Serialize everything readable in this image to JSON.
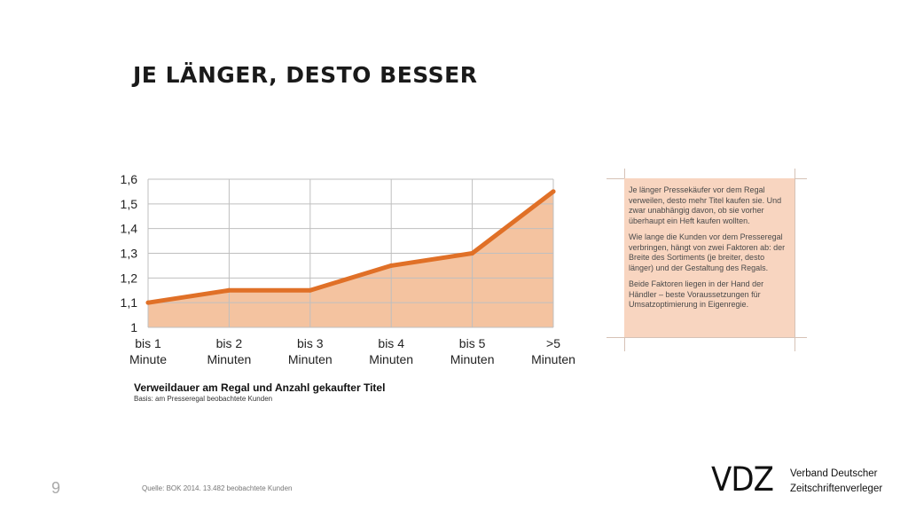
{
  "page": {
    "title": "JE LÄNGER, DESTO BESSER",
    "caption_title": "Verweildauer am Regal und Anzahl gekaufter Titel",
    "caption_basis": "Basis: am Presseregal beobachtete Kunden",
    "slide_number": "9",
    "source": "Quelle: BOK 2014. 13.482 beobachtete Kunden"
  },
  "sidebox": {
    "paragraphs": [
      "Je länger Pressekäufer vor dem Regal verweilen, desto mehr Titel kaufen sie. Und zwar unabhängig davon, ob sie vorher überhaupt ein Heft kaufen wollten.",
      "Wie lange die Kunden vor dem Presseregal verbringen, hängt von zwei Faktoren ab: der Breite des Sortiments (je breiter, desto länger) und der Gestaltung des Regals.",
      "Beide Faktoren liegen in der Hand der Händler – beste Voraussetzungen für Umsatzoptimierung in Eigenregie."
    ]
  },
  "logo": {
    "mark": "VDZ",
    "line1": "Verband Deutscher",
    "line2": "Zeitschriftenverleger"
  },
  "colors": {
    "line": "#e07027",
    "area": "#f4c3a0",
    "grid": "#bfbfbf",
    "sidebox": "#f8d5c0"
  },
  "chart_data": {
    "type": "area",
    "categories": [
      [
        "bis 1",
        "Minute"
      ],
      [
        "bis 2",
        "Minuten"
      ],
      [
        "bis 3",
        "Minuten"
      ],
      [
        "bis 4",
        "Minuten"
      ],
      [
        "bis 5",
        "Minuten"
      ],
      [
        ">5",
        "Minuten"
      ]
    ],
    "values": [
      1.1,
      1.15,
      1.15,
      1.25,
      1.3,
      1.55
    ],
    "ylim": [
      1,
      1.6
    ],
    "yticks": [
      "1",
      "1,1",
      "1,2",
      "1,3",
      "1,4",
      "1,5",
      "1,6"
    ],
    "grid": true,
    "legend": "none"
  }
}
